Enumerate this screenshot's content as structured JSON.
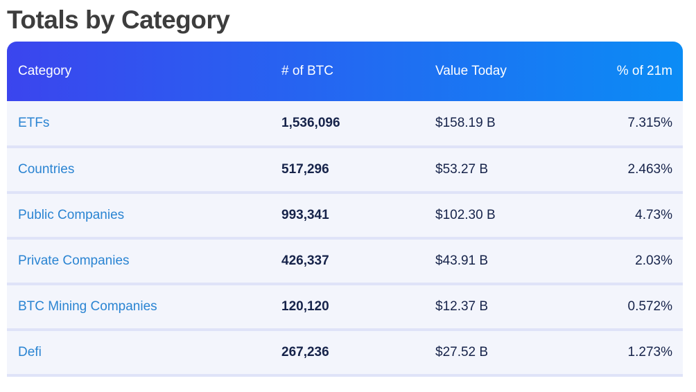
{
  "page": {
    "title": "Totals by Category"
  },
  "table": {
    "columns": [
      {
        "label": "Category",
        "align": "left"
      },
      {
        "label": "# of BTC",
        "align": "left"
      },
      {
        "label": "Value Today",
        "align": "left"
      },
      {
        "label": "% of 21m",
        "align": "right"
      }
    ],
    "rows": [
      {
        "category": "ETFs",
        "btc": "1,536,096",
        "value_today": "$158.19 B",
        "pct_of_21m": "7.315%"
      },
      {
        "category": "Countries",
        "btc": "517,296",
        "value_today": "$53.27 B",
        "pct_of_21m": "2.463%"
      },
      {
        "category": "Public Companies",
        "btc": "993,341",
        "value_today": "$102.30 B",
        "pct_of_21m": "4.73%"
      },
      {
        "category": "Private Companies",
        "btc": "426,337",
        "value_today": "$43.91 B",
        "pct_of_21m": "2.03%"
      },
      {
        "category": "BTC Mining Companies",
        "btc": "120,120",
        "value_today": "$12.37 B",
        "pct_of_21m": "0.572%"
      },
      {
        "category": "Defi",
        "btc": "267,236",
        "value_today": "$27.52 B",
        "pct_of_21m": "1.273%"
      }
    ]
  },
  "colors": {
    "header_gradient_start": "#3b45ee",
    "header_gradient_end": "#0b8cf5",
    "row_background": "#f3f5fc",
    "row_divider": "#dfe3f8",
    "link_text": "#2a84d2",
    "value_text": "#16234a",
    "title_text": "#3d3d3d"
  }
}
